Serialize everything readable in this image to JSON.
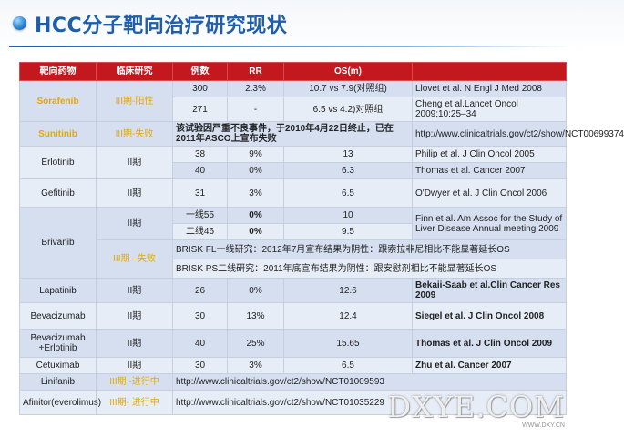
{
  "title": "HCC分子靶向治疗研究现状",
  "headers": [
    "靶向药物",
    "临床研究",
    "例数",
    "RR",
    "OS(m)",
    ""
  ],
  "sorafenib": {
    "drug": "Sorafenib",
    "phase": "III期-阳性",
    "r1": {
      "n": "300",
      "rr": "2.3%",
      "os": "10.7 vs 7.9(对照组)",
      "ref": "Llovet et al. N Engl J Med 2008"
    },
    "r2": {
      "n": "271",
      "rr": "-",
      "os": "6.5 vs 4.2)对照组",
      "ref": "Cheng et al.Lancet Oncol 2009;10:25–34"
    }
  },
  "sunitinib": {
    "drug": "Sunitinib",
    "phase": "III期-失败",
    "note": "该试验因严重不良事件，于2010年4月22日终止，已在2011年ASCO上宣布失败",
    "ref": "http://www.clinicaltrials.gov/ct2/show/NCT00699374"
  },
  "erlotinib": {
    "drug": "Erlotinib",
    "phase": "II期",
    "r1": {
      "n": "38",
      "rr": "9%",
      "os": "13",
      "ref": "Philip et al. J Clin Oncol 2005"
    },
    "r2": {
      "n": "40",
      "rr": "0%",
      "os": "6.3",
      "ref": "Thomas et al. Cancer 2007"
    }
  },
  "gefitinib": {
    "drug": "Gefitinib",
    "phase": "II期",
    "n": "31",
    "rr": "3%",
    "os": "6.5",
    "ref": "O'Dwyer et al. J Clin Oncol 2006"
  },
  "brivanib": {
    "drug": "Brivanib",
    "phase2": "II期",
    "r1": {
      "n": "一线55",
      "rr": "0%",
      "os": "10"
    },
    "r2": {
      "n": "二线46",
      "rr": "0%",
      "os": "9.5"
    },
    "ref": "Finn et al. Am Assoc for the Study of Liver Disease Annual meeting 2009",
    "phase3": "III期 –失败",
    "fl": "BRISK FL一线研究：2012年7月宣布结果为阴性：跟索拉非尼相比不能显著延长OS",
    "ps": "BRISK PS二线研究：2011年底宣布结果为阴性：跟安慰剂相比不能显著延长OS"
  },
  "lapatinib": {
    "drug": "Lapatinib",
    "phase": "II期",
    "n": "26",
    "rr": "0%",
    "os": "12.6",
    "ref": "Bekaii-Saab et al.Clin Cancer Res 2009"
  },
  "bevacizumab": {
    "drug": "Bevacizumab",
    "phase": "II期",
    "n": "30",
    "rr": "13%",
    "os": "12.4",
    "ref": "Siegel et al. J Clin Oncol 2008"
  },
  "bev_erl": {
    "drug": "Bevacizumab +Erlotinib",
    "phase": "II期",
    "n": "40",
    "rr": "25%",
    "os": "15.65",
    "ref": "Thomas et al. J Clin Oncol 2009"
  },
  "cetuximab": {
    "drug": "Cetuximab",
    "phase": "II期",
    "n": "30",
    "rr": "3%",
    "os": "6.5",
    "ref": "Zhu et al. Cancer 2007"
  },
  "linifanib": {
    "drug": "Linifanib",
    "phase": "III期 -进行中",
    "ref": "http://www.clinicaltrials.gov/ct2/show/NCT01009593"
  },
  "afinitor": {
    "drug": "Afinitor(everolimus)",
    "phase": "III期- 进行中",
    "ref": "http://www.clinicaltrials.gov/ct2/show/NCT01035229"
  },
  "watermark": "DXYE.COM",
  "watermark_sub": "WWW.DXY.CN"
}
